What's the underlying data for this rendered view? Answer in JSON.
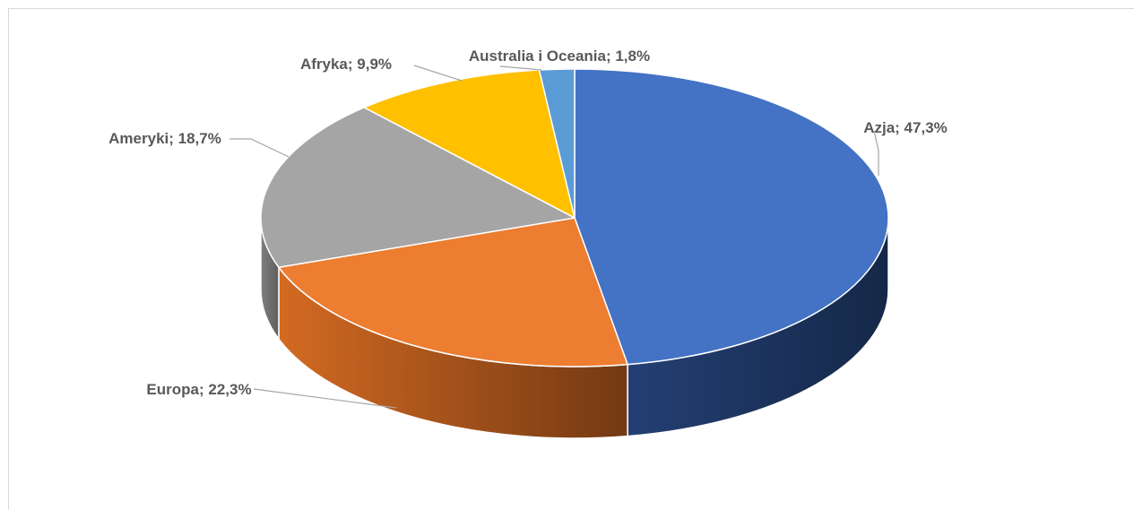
{
  "chart_data": {
    "type": "pie",
    "categories": [
      "Azja",
      "Europa",
      "Ameryki",
      "Afryka",
      "Australia i Oceania"
    ],
    "values": [
      47.3,
      22.3,
      18.7,
      9.9,
      1.8
    ],
    "labels": [
      "Azja; 47,3%",
      "Europa; 22,3%",
      "Ameryki; 18,7%",
      "Afryka; 9,9%",
      "Australia i Oceania; 1,8%"
    ],
    "colors": [
      "#4472c4",
      "#ed7d31",
      "#a5a5a5",
      "#ffc000",
      "#5b9bd5"
    ],
    "unit": "%",
    "title": "",
    "legend": "none",
    "style": "3d-pie"
  }
}
